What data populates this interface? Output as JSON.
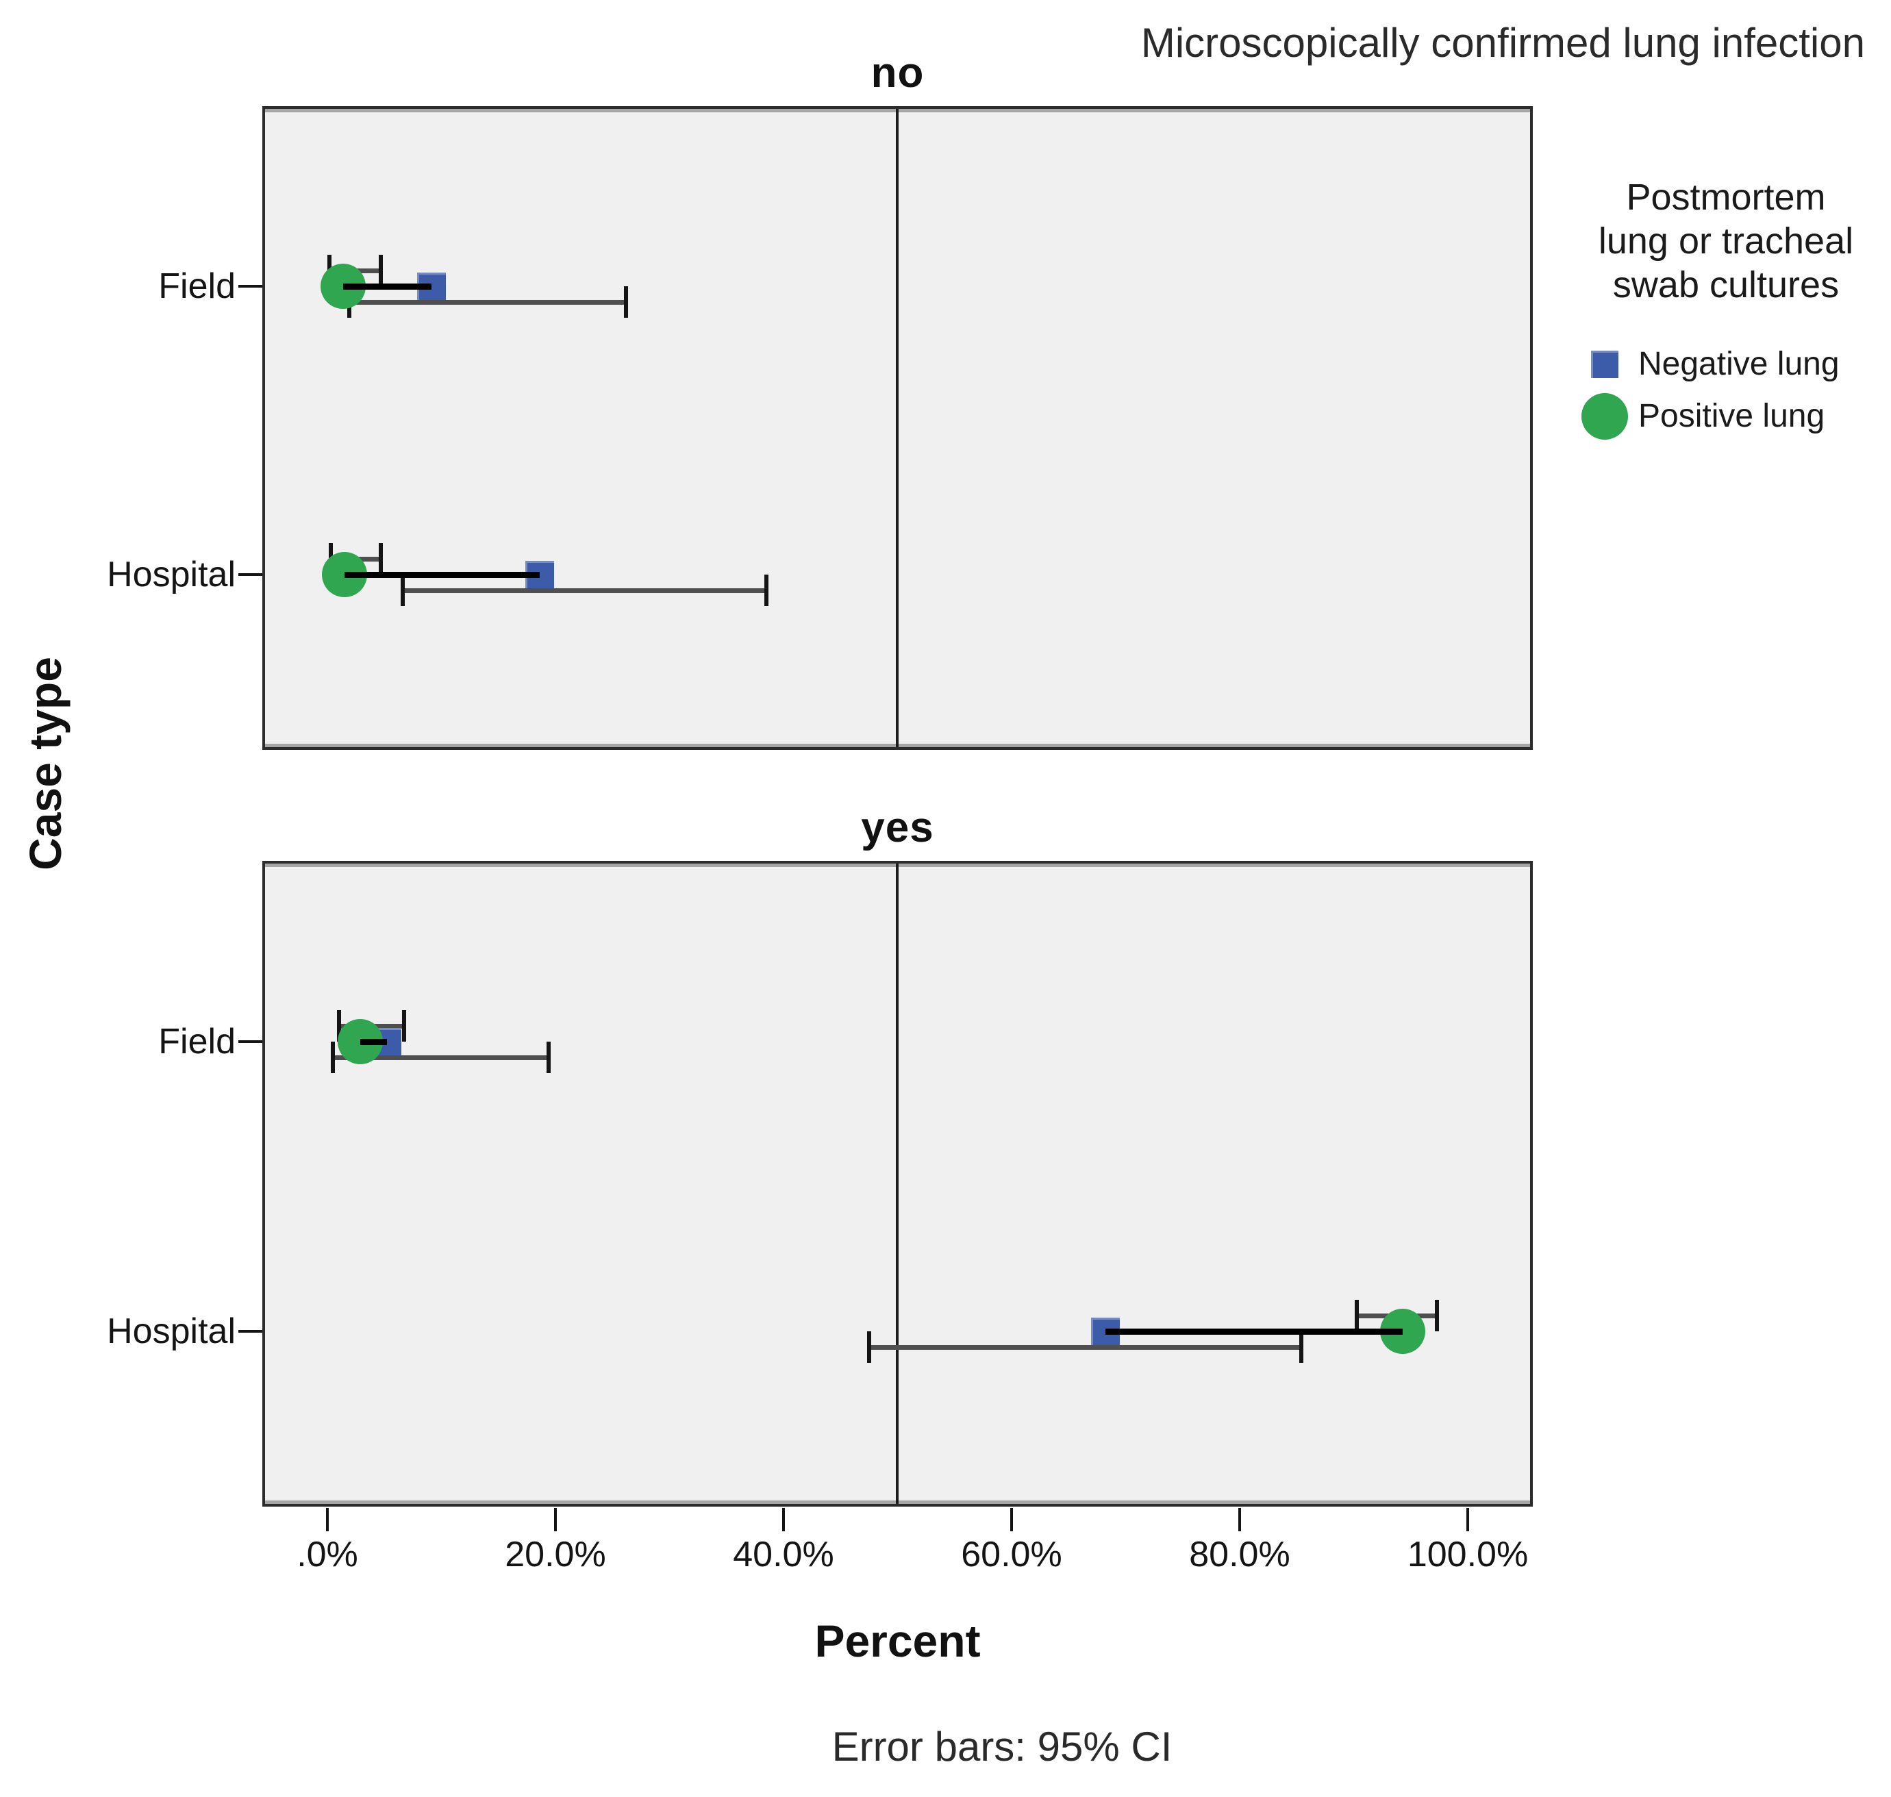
{
  "title": "Microscopically confirmed lung infection",
  "footnote": "Error bars: 95% CI",
  "axes": {
    "x_label": "Percent",
    "y_label": "Case type",
    "x_ticks": [
      ".0%",
      "20.0%",
      "40.0%",
      "60.0%",
      "80.0%",
      "100.0%"
    ],
    "x_tick_values": [
      0,
      20,
      40,
      60,
      80,
      100
    ],
    "x_range_pct": [
      -5.5,
      105.5
    ],
    "reference_line_pct": 50,
    "grid": "off"
  },
  "legend": {
    "title_lines": [
      "Postmortem",
      "lung or tracheal",
      "swab cultures"
    ],
    "items": [
      {
        "label": "Negative lung",
        "marker": "square",
        "color": "#3c5ba8"
      },
      {
        "label": "Positive lung",
        "marker": "circle",
        "color": "#2fa64f"
      }
    ]
  },
  "colors": {
    "negative": "#3c5ba8",
    "positive": "#2fa64f",
    "panel_bg": "#f0f0f0",
    "ci": "#4f4f4f",
    "black": "#141414"
  },
  "chart_data": {
    "type": "scatter",
    "subtype": "dot-plot-with-error-bars",
    "facet_variable": "Microscopically confirmed lung infection",
    "x_unit": "percent",
    "error_bars": "95% CI",
    "facets": [
      {
        "label": "no",
        "rows": [
          {
            "category": "Field",
            "series": [
              {
                "name": "Negative lung",
                "value_pct": 9.1,
                "ci_low_pct": 1.9,
                "ci_high_pct": 26.2
              },
              {
                "name": "Positive lung",
                "value_pct": 1.4,
                "ci_low_pct": 0.2,
                "ci_high_pct": 4.7
              }
            ]
          },
          {
            "category": "Hospital",
            "series": [
              {
                "name": "Negative lung",
                "value_pct": 18.6,
                "ci_low_pct": 6.6,
                "ci_high_pct": 38.5
              },
              {
                "name": "Positive lung",
                "value_pct": 1.5,
                "ci_low_pct": 0.3,
                "ci_high_pct": 4.7
              }
            ]
          }
        ]
      },
      {
        "label": "yes",
        "rows": [
          {
            "category": "Field",
            "series": [
              {
                "name": "Negative lung",
                "value_pct": 5.2,
                "ci_low_pct": 0.5,
                "ci_high_pct": 19.4
              },
              {
                "name": "Positive lung",
                "value_pct": 2.9,
                "ci_low_pct": 1.0,
                "ci_high_pct": 6.7
              }
            ]
          },
          {
            "category": "Hospital",
            "series": [
              {
                "name": "Negative lung",
                "value_pct": 68.2,
                "ci_low_pct": 47.5,
                "ci_high_pct": 85.4
              },
              {
                "name": "Positive lung",
                "value_pct": 94.3,
                "ci_low_pct": 90.3,
                "ci_high_pct": 97.3
              }
            ]
          }
        ]
      }
    ]
  }
}
